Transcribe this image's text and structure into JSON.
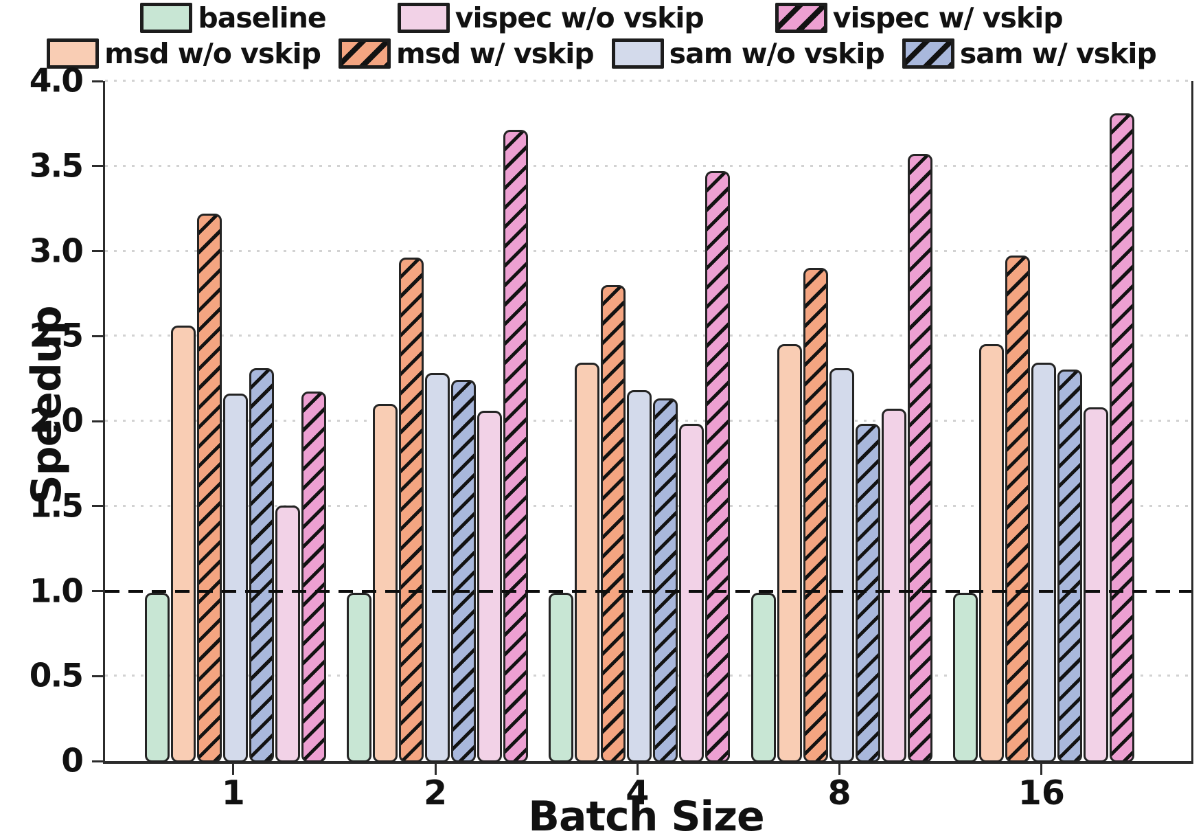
{
  "chart_data": {
    "type": "bar",
    "title": "",
    "xlabel": "Batch Size",
    "ylabel": "Speedup",
    "categories": [
      "1",
      "2",
      "4",
      "8",
      "16"
    ],
    "ylim": [
      0,
      4.0
    ],
    "yticks": {
      "values": [
        0,
        0.5,
        1.0,
        1.5,
        2.0,
        2.5,
        3.0,
        3.5,
        4.0
      ],
      "labels": [
        "0",
        "0.5",
        "1.0",
        "1.5",
        "2.0",
        "2.5",
        "3.0",
        "3.5",
        "4.0"
      ]
    },
    "grid": "dotted horizontal gridlines at every 0.5",
    "legend_position": "top, two rows, no frame",
    "legend_rows": [
      [
        0,
        5,
        6
      ],
      [
        1,
        2,
        3,
        4
      ]
    ],
    "reference_line": {
      "y": 1.0,
      "style": "dashed",
      "color": "#0d0d0d"
    },
    "bar_border_color": "#242424",
    "hatch_color": "#121212",
    "series": [
      {
        "name": "baseline",
        "color": "#c8e6d4",
        "hatch": false,
        "values": [
          1.0,
          1.0,
          1.0,
          1.0,
          1.0
        ]
      },
      {
        "name": "msd w/o vskip",
        "color": "#f9cdb4",
        "hatch": false,
        "values": [
          2.57,
          2.11,
          2.35,
          2.46,
          2.46
        ]
      },
      {
        "name": "msd w/ vskip",
        "color": "#f4a581",
        "hatch": true,
        "values": [
          3.23,
          2.97,
          2.81,
          2.91,
          2.98
        ]
      },
      {
        "name": "sam w/o vskip",
        "color": "#d3daeb",
        "hatch": false,
        "values": [
          2.17,
          2.29,
          2.19,
          2.32,
          2.35
        ]
      },
      {
        "name": "sam w/ vskip",
        "color": "#a9b8dc",
        "hatch": true,
        "values": [
          2.32,
          2.25,
          2.14,
          1.99,
          2.31
        ]
      },
      {
        "name": "vispec w/o vskip",
        "color": "#f2d2e7",
        "hatch": false,
        "values": [
          1.51,
          2.07,
          1.99,
          2.08,
          2.09
        ]
      },
      {
        "name": "vispec w/ vskip",
        "color": "#eda0d2",
        "hatch": true,
        "values": [
          2.18,
          3.72,
          3.48,
          3.58,
          3.82
        ]
      }
    ],
    "group_center_percents": [
      12.0,
      30.6,
      49.2,
      67.8,
      86.4
    ]
  }
}
